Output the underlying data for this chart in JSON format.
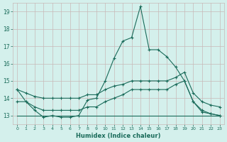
{
  "xlabel": "Humidex (Indice chaleur)",
  "bg_color": "#d4f0ec",
  "grid_color": "#c8b8b8",
  "line_color": "#1a6b5a",
  "xlim": [
    -0.5,
    23.5
  ],
  "ylim": [
    12.5,
    19.5
  ],
  "yticks": [
    13,
    14,
    15,
    16,
    17,
    18,
    19
  ],
  "xticks": [
    0,
    1,
    2,
    3,
    4,
    5,
    6,
    7,
    8,
    9,
    10,
    11,
    12,
    13,
    14,
    15,
    16,
    17,
    18,
    19,
    20,
    21,
    22,
    23
  ],
  "series1_x": [
    0,
    1,
    2,
    3,
    4,
    5,
    6,
    7,
    8,
    9,
    10,
    11,
    12,
    13,
    14,
    15,
    16,
    17,
    18,
    19,
    20,
    21,
    22,
    23
  ],
  "series1_y": [
    14.5,
    13.8,
    13.3,
    12.9,
    13.0,
    12.9,
    12.9,
    13.0,
    13.9,
    14.0,
    15.0,
    16.3,
    17.3,
    17.5,
    19.3,
    16.8,
    16.8,
    16.4,
    15.8,
    15.0,
    13.8,
    13.2,
    13.1,
    13.0
  ],
  "series2_x": [
    0,
    1,
    2,
    3,
    4,
    5,
    6,
    7,
    8,
    9,
    10,
    11,
    12,
    13,
    14,
    15,
    16,
    17,
    18,
    19,
    20,
    21,
    22,
    23
  ],
  "series2_y": [
    13.8,
    13.8,
    13.5,
    13.3,
    13.3,
    13.3,
    13.3,
    13.3,
    13.5,
    13.5,
    13.8,
    14.0,
    14.2,
    14.5,
    14.5,
    14.5,
    14.5,
    14.5,
    14.8,
    15.0,
    13.8,
    13.3,
    13.1,
    13.0
  ],
  "series3_x": [
    0,
    1,
    2,
    3,
    4,
    5,
    6,
    7,
    8,
    9,
    10,
    11,
    12,
    13,
    14,
    15,
    16,
    17,
    18,
    19,
    20,
    21,
    22,
    23
  ],
  "series3_y": [
    14.5,
    14.3,
    14.1,
    14.0,
    14.0,
    14.0,
    14.0,
    14.0,
    14.2,
    14.2,
    14.5,
    14.7,
    14.8,
    15.0,
    15.0,
    15.0,
    15.0,
    15.0,
    15.2,
    15.5,
    14.3,
    13.8,
    13.6,
    13.5
  ],
  "series4_x": [
    0,
    1,
    2,
    3,
    4,
    5,
    6,
    7,
    8,
    9,
    10,
    11,
    12,
    13,
    14,
    15,
    16,
    17,
    18,
    19,
    20,
    21,
    22,
    23
  ],
  "series4_y": [
    13.0,
    13.0,
    13.0,
    13.0,
    13.0,
    13.0,
    13.0,
    13.0,
    13.0,
    13.0,
    13.0,
    13.0,
    13.0,
    13.0,
    13.0,
    13.0,
    13.0,
    13.0,
    13.0,
    13.0,
    13.0,
    13.0,
    13.0,
    13.0
  ]
}
